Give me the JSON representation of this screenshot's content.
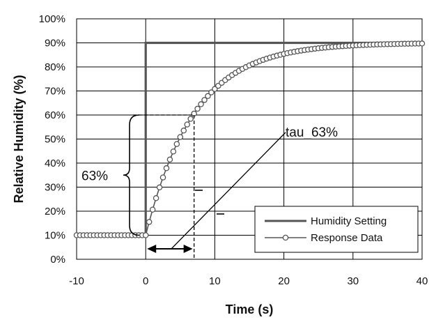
{
  "chart_data": {
    "type": "line",
    "title": "",
    "xlabel": "Time (s)",
    "ylabel": "Relative Humidity (%)",
    "xlim": [
      -10,
      40
    ],
    "ylim": [
      0,
      100
    ],
    "x_ticks": [
      -10,
      0,
      10,
      20,
      30,
      40
    ],
    "x_tick_labels": [
      "-10",
      "0",
      "10",
      "20",
      "30",
      "40"
    ],
    "y_ticks": [
      0,
      10,
      20,
      30,
      40,
      50,
      60,
      70,
      80,
      90,
      100
    ],
    "y_tick_labels": [
      "0%",
      "10%",
      "20%",
      "30%",
      "40%",
      "50%",
      "60%",
      "70%",
      "80%",
      "90%",
      "100%"
    ],
    "grid": true,
    "legend_position": "bottom-right",
    "series": [
      {
        "name": "Humidity Setting",
        "style": "thick-line",
        "color": "#555555",
        "x": [
          -10,
          0,
          0,
          40
        ],
        "y": [
          10,
          10,
          90,
          90
        ]
      },
      {
        "name": "Response Data",
        "style": "line-circle-markers",
        "color": "#555555",
        "model": {
          "initial": 10,
          "final": 90,
          "tau": 7,
          "x_start": 0,
          "y_pre": 10,
          "dx": 0.5
        }
      }
    ],
    "annotations": {
      "percent_label": "63%",
      "tau_label": "tau_63%",
      "tau_value": 7,
      "level_63": 60
    }
  }
}
